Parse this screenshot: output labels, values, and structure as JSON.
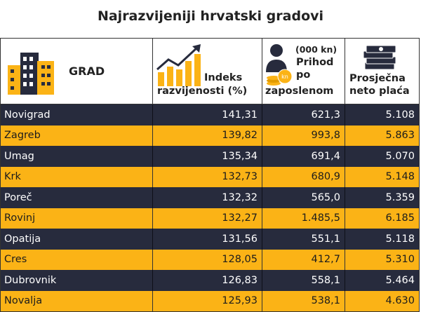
{
  "title": "Najrazvijeniji hrvatski gradovi",
  "colors": {
    "dark_row": "#272b3d",
    "light_row": "#fbb316",
    "text_dark": "#1c1c1c",
    "text_light": "#ffffff"
  },
  "headers": {
    "grad": "GRAD",
    "indeks_line1": "Indeks",
    "indeks_line2": "razvijenosti (%)",
    "prihod_unit": "(000 kn)",
    "prihod_line1": "Prihod",
    "prihod_line2": "po",
    "prihod_line3": "zaposlenom",
    "placa_line1": "Prosječna",
    "placa_line2": "neto plaća"
  },
  "icons": [
    "buildings-icon",
    "growth-chart-icon",
    "person-coins-icon",
    "money-stack-icon"
  ],
  "chart_data": {
    "type": "table",
    "title": "Najrazvijeniji hrvatski gradovi",
    "columns": [
      "GRAD",
      "Indeks razvijenosti (%)",
      "(000 kn) Prihod po zaposlenom",
      "Prosječna neto plaća"
    ],
    "rows": [
      [
        "Novigrad",
        "141,31",
        "621,3",
        "5.108"
      ],
      [
        "Zagreb",
        "139,82",
        "993,8",
        "5.863"
      ],
      [
        "Umag",
        "135,34",
        "691,4",
        "5.070"
      ],
      [
        "Krk",
        "132,73",
        "680,9",
        "5.148"
      ],
      [
        "Poreč",
        "132,32",
        "565,0",
        "5.359"
      ],
      [
        "Rovinj",
        "132,27",
        "1.485,5",
        "6.185"
      ],
      [
        "Opatija",
        "131,56",
        "551,1",
        "5.118"
      ],
      [
        "Cres",
        "128,05",
        "412,7",
        "5.310"
      ],
      [
        "Dubrovnik",
        "126,83",
        "558,1",
        "5.464"
      ],
      [
        "Novalja",
        "125,93",
        "538,1",
        "4.630"
      ]
    ]
  }
}
